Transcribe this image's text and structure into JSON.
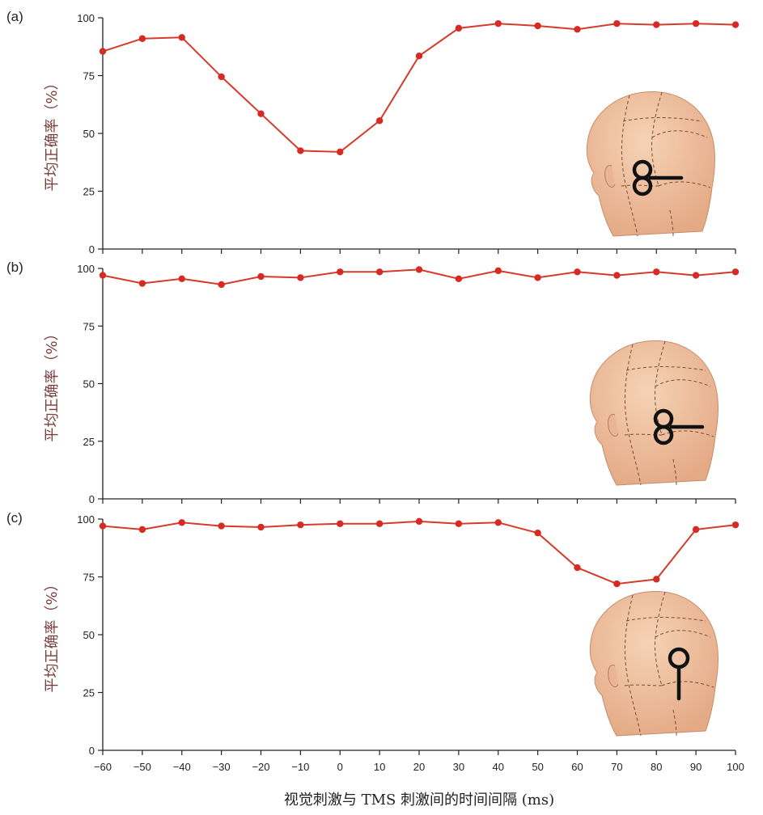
{
  "figure": {
    "xlabel": "视觉刺激与 TMS 刺激间的时间间隔 (ms)"
  },
  "chart_data": [
    {
      "type": "line",
      "panel_label": "(a)",
      "ylabel": "平均正确率（%）",
      "ylim": [
        0,
        100
      ],
      "yticks": [
        "0",
        "25",
        "50",
        "75",
        "100"
      ],
      "x": [
        -60,
        -50,
        -40,
        -30,
        -20,
        -10,
        0,
        10,
        20,
        30,
        40,
        50,
        60,
        70,
        80,
        90,
        100
      ],
      "xlim": [
        -60,
        100
      ],
      "xticks": [],
      "values": [
        85.5,
        91,
        91.5,
        74.5,
        58.5,
        42.5,
        42,
        55.5,
        83.5,
        95.5,
        97.5,
        96.5,
        95,
        97.5,
        97,
        97.5,
        97
      ],
      "line_color": "#d63a2a",
      "marker_color": "#d62b22",
      "grid": false,
      "inset": "head-coil-lateral"
    },
    {
      "type": "line",
      "panel_label": "(b)",
      "ylabel": "平均正确率（%）",
      "ylim": [
        0,
        100
      ],
      "yticks": [
        "0",
        "25",
        "50",
        "75",
        "100"
      ],
      "x": [
        -60,
        -50,
        -40,
        -30,
        -20,
        -10,
        0,
        10,
        20,
        30,
        40,
        50,
        60,
        70,
        80,
        90,
        100
      ],
      "xlim": [
        -60,
        100
      ],
      "xticks": [],
      "values": [
        97,
        93.5,
        95.5,
        93,
        96.5,
        96,
        98.5,
        98.5,
        99.5,
        95.5,
        99,
        96,
        98.5,
        97,
        98.5,
        97,
        98.5
      ],
      "line_color": "#d63a2a",
      "marker_color": "#d62b22",
      "grid": false,
      "inset": "head-coil-posterior"
    },
    {
      "type": "line",
      "panel_label": "(c)",
      "ylabel": "平均正确率（%）",
      "ylim": [
        0,
        100
      ],
      "yticks": [
        "0",
        "25",
        "50",
        "75",
        "100"
      ],
      "x": [
        -60,
        -50,
        -40,
        -30,
        -20,
        -10,
        0,
        10,
        20,
        30,
        40,
        50,
        60,
        70,
        80,
        90,
        100
      ],
      "xlim": [
        -60,
        100
      ],
      "xticks": [
        "−60",
        "−50",
        "−40",
        "−30",
        "−20",
        "−10",
        "0",
        "10",
        "20",
        "30",
        "40",
        "50",
        "60",
        "70",
        "80",
        "90",
        "100"
      ],
      "values": [
        97,
        95.5,
        98.5,
        97,
        96.5,
        97.5,
        98,
        98,
        99,
        98,
        98.5,
        94,
        79,
        72,
        74,
        95.5,
        97.5
      ],
      "line_color": "#d63a2a",
      "marker_color": "#d62b22",
      "grid": false,
      "inset": "head-coil-vertical"
    }
  ]
}
